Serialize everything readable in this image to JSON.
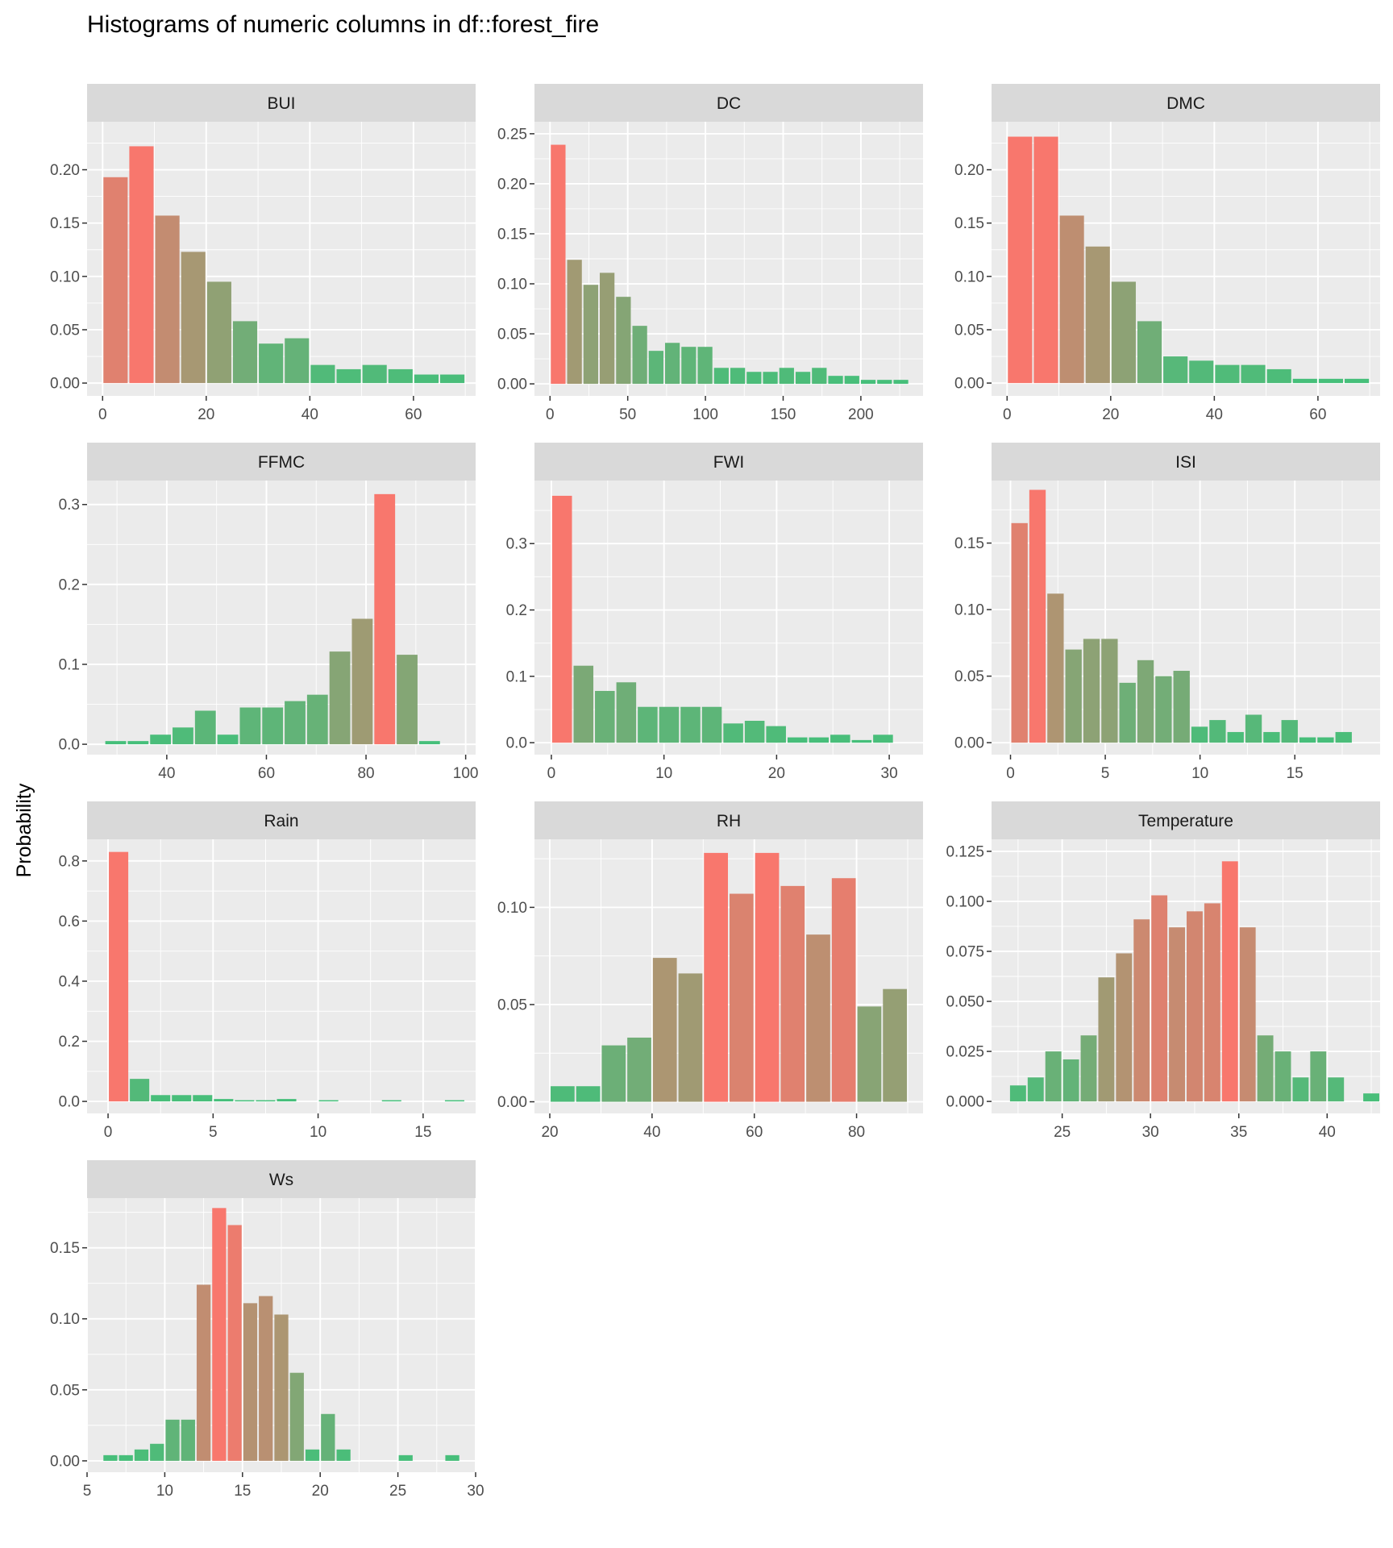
{
  "title": "Histograms of numeric columns in df::forest_fire",
  "y_axis_label": "Probability",
  "colors": {
    "low": "#43c07a",
    "high": "#f8776d",
    "panel_bg": "#ebebeb",
    "strip_bg": "#d9d9d9",
    "grid": "#ffffff",
    "axis_text": "#4d4d4d",
    "tick": "#333333"
  },
  "chart_data": [
    {
      "type": "bar",
      "panel": "BUI",
      "xlim": [
        -3,
        72
      ],
      "ylim": [
        -0.012,
        0.245
      ],
      "xticks": [
        0,
        20,
        40,
        60
      ],
      "yticks": [
        0,
        0.05,
        0.1,
        0.15,
        0.2
      ],
      "ytick_labels": [
        "0.00",
        "0.05",
        "0.10",
        "0.15",
        "0.20"
      ],
      "bin_start": 0,
      "bin_width": 5,
      "values": [
        0.193,
        0.222,
        0.157,
        0.123,
        0.095,
        0.058,
        0.037,
        0.042,
        0.017,
        0.013,
        0.017,
        0.013,
        0.008,
        0.008
      ]
    },
    {
      "type": "bar",
      "panel": "DC",
      "xlim": [
        -10,
        240
      ],
      "ylim": [
        -0.012,
        0.262
      ],
      "xticks": [
        0,
        50,
        100,
        150,
        200
      ],
      "yticks": [
        0,
        0.05,
        0.1,
        0.15,
        0.2,
        0.25
      ],
      "ytick_labels": [
        "0.00",
        "0.05",
        "0.10",
        "0.15",
        "0.20",
        "0.25"
      ],
      "bin_start": 0,
      "bin_width": 10.5,
      "values": [
        0.239,
        0.124,
        0.099,
        0.111,
        0.087,
        0.058,
        0.033,
        0.041,
        0.037,
        0.037,
        0.016,
        0.016,
        0.012,
        0.012,
        0.016,
        0.012,
        0.016,
        0.008,
        0.008,
        0.004,
        0.004,
        0.004
      ]
    },
    {
      "type": "bar",
      "panel": "DMC",
      "xlim": [
        -3,
        72
      ],
      "ylim": [
        -0.012,
        0.245
      ],
      "xticks": [
        0,
        20,
        40,
        60
      ],
      "yticks": [
        0,
        0.05,
        0.1,
        0.15,
        0.2
      ],
      "ytick_labels": [
        "0.00",
        "0.05",
        "0.10",
        "0.15",
        "0.20"
      ],
      "bin_start": 0,
      "bin_width": 5,
      "values": [
        0.231,
        0.231,
        0.157,
        0.128,
        0.095,
        0.058,
        0.025,
        0.021,
        0.017,
        0.017,
        0.013,
        0.004,
        0.004,
        0.004
      ]
    },
    {
      "type": "bar",
      "panel": "FFMC",
      "xlim": [
        24,
        102
      ],
      "ylim": [
        -0.013,
        0.33
      ],
      "xticks": [
        40,
        60,
        80,
        100
      ],
      "yticks": [
        0,
        0.1,
        0.2,
        0.3
      ],
      "ytick_labels": [
        "0.0",
        "0.1",
        "0.2",
        "0.3"
      ],
      "bin_start": 27.5,
      "bin_width": 4.5,
      "values": [
        0.004,
        0.004,
        0.012,
        0.021,
        0.042,
        0.012,
        0.046,
        0.046,
        0.054,
        0.062,
        0.116,
        0.157,
        0.313,
        0.112,
        0.004
      ]
    },
    {
      "type": "bar",
      "panel": "FWI",
      "xlim": [
        -1.5,
        33
      ],
      "ylim": [
        -0.018,
        0.395
      ],
      "xticks": [
        0,
        10,
        20,
        30
      ],
      "yticks": [
        0,
        0.1,
        0.2,
        0.3
      ],
      "ytick_labels": [
        "0.0",
        "0.1",
        "0.2",
        "0.3"
      ],
      "bin_start": 0,
      "bin_width": 1.9,
      "values": [
        0.372,
        0.116,
        0.078,
        0.091,
        0.054,
        0.054,
        0.054,
        0.054,
        0.029,
        0.033,
        0.025,
        0.008,
        0.008,
        0.012,
        0.004,
        0.012
      ]
    },
    {
      "type": "bar",
      "panel": "ISI",
      "xlim": [
        -1,
        19.5
      ],
      "ylim": [
        -0.009,
        0.197
      ],
      "xticks": [
        0,
        5,
        10,
        15
      ],
      "yticks": [
        0,
        0.05,
        0.1,
        0.15
      ],
      "ytick_labels": [
        "0.00",
        "0.05",
        "0.10",
        "0.15"
      ],
      "bin_start": 0,
      "bin_width": 0.95,
      "values": [
        0.165,
        0.19,
        0.112,
        0.07,
        0.078,
        0.078,
        0.045,
        0.062,
        0.05,
        0.054,
        0.012,
        0.017,
        0.008,
        0.021,
        0.008,
        0.017,
        0.004,
        0.004,
        0.008
      ]
    },
    {
      "type": "bar",
      "panel": "Rain",
      "xlim": [
        -1,
        17.5
      ],
      "ylim": [
        -0.04,
        0.872
      ],
      "xticks": [
        0,
        5,
        10,
        15
      ],
      "yticks": [
        0,
        0.2,
        0.4,
        0.6,
        0.8
      ],
      "ytick_labels": [
        "0.0",
        "0.2",
        "0.4",
        "0.6",
        "0.8"
      ],
      "bin_start": 0,
      "bin_width": 1,
      "values": [
        0.83,
        0.075,
        0.021,
        0.021,
        0.021,
        0.008,
        0.004,
        0.004,
        0.008,
        0,
        0.004,
        0,
        0,
        0.004,
        0,
        0,
        0.004
      ]
    },
    {
      "type": "bar",
      "panel": "RH",
      "xlim": [
        17,
        93
      ],
      "ylim": [
        -0.006,
        0.135
      ],
      "xticks": [
        20,
        40,
        60,
        80
      ],
      "yticks": [
        0,
        0.05,
        0.1
      ],
      "ytick_labels": [
        "0.00",
        "0.05",
        "0.10"
      ],
      "bin_start": 20,
      "bin_width": 5,
      "values": [
        0.008,
        0.008,
        0.029,
        0.033,
        0.074,
        0.066,
        0.128,
        0.107,
        0.128,
        0.111,
        0.086,
        0.115,
        0.049,
        0.058
      ]
    },
    {
      "type": "bar",
      "panel": "Temperature",
      "xlim": [
        21,
        43
      ],
      "ylim": [
        -0.006,
        0.131
      ],
      "xticks": [
        25,
        30,
        35,
        40
      ],
      "yticks": [
        0,
        0.025,
        0.05,
        0.075,
        0.1,
        0.125
      ],
      "ytick_labels": [
        "0.000",
        "0.025",
        "0.050",
        "0.075",
        "0.100",
        "0.125"
      ],
      "bin_start": 22,
      "bin_width": 1,
      "values": [
        0.008,
        0.012,
        0.025,
        0.021,
        0.033,
        0.062,
        0.074,
        0.091,
        0.103,
        0.087,
        0.095,
        0.099,
        0.12,
        0.087,
        0.033,
        0.025,
        0.012,
        0.025,
        0.012,
        0,
        0.004
      ]
    },
    {
      "type": "bar",
      "panel": "Ws",
      "xlim": [
        5,
        30
      ],
      "ylim": [
        -0.008,
        0.185
      ],
      "xticks": [
        5,
        10,
        15,
        20,
        25,
        30
      ],
      "yticks": [
        0,
        0.05,
        0.1,
        0.15
      ],
      "ytick_labels": [
        "0.00",
        "0.05",
        "0.10",
        "0.15"
      ],
      "bin_start": 6,
      "bin_width": 1,
      "values": [
        0.004,
        0.004,
        0.008,
        0.012,
        0.029,
        0.029,
        0.124,
        0.178,
        0.166,
        0.111,
        0.116,
        0.103,
        0.062,
        0.008,
        0.033,
        0.008,
        0,
        0,
        0,
        0.004,
        0,
        0,
        0.004
      ]
    }
  ]
}
